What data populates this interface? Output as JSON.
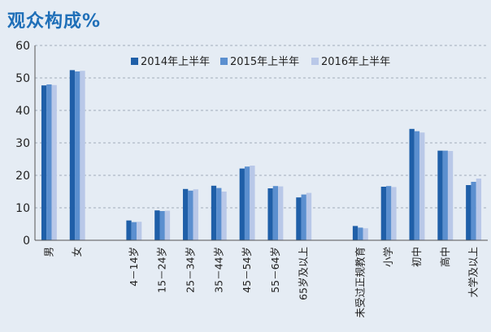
{
  "chart_data": {
    "type": "bar",
    "title": "观众构成%",
    "ylim": [
      0,
      60
    ],
    "yticks": [
      0,
      10,
      20,
      30,
      40,
      50,
      60
    ],
    "grid": "horizontal dashed",
    "legend_position": "top-center",
    "categories": [
      "男",
      "女",
      "",
      "4－14岁",
      "15－24岁",
      "25－34岁",
      "35－44岁",
      "45－54岁",
      "55－64岁",
      "65岁及以上",
      "",
      "未受过正规教育",
      "小学",
      "初中",
      "高中",
      "大学及以上"
    ],
    "series": [
      {
        "name": "2014年上半年",
        "color": "#1f5fa8",
        "values": [
          47.7,
          52.4,
          null,
          6.1,
          9.2,
          15.8,
          16.8,
          22.1,
          16.0,
          13.2,
          null,
          4.4,
          16.5,
          34.3,
          27.6,
          17.0
        ]
      },
      {
        "name": "2015年上半年",
        "color": "#5b8fcf",
        "values": [
          48.0,
          52.0,
          null,
          5.6,
          9.0,
          15.3,
          16.1,
          22.7,
          16.7,
          14.1,
          null,
          3.9,
          16.7,
          33.6,
          27.6,
          18.0
        ]
      },
      {
        "name": "2016年上半年",
        "color": "#b9c8e8",
        "values": [
          47.8,
          52.2,
          null,
          5.7,
          9.1,
          15.7,
          15.0,
          23.0,
          16.6,
          14.6,
          null,
          3.7,
          16.4,
          33.2,
          27.5,
          19.0
        ]
      }
    ]
  }
}
